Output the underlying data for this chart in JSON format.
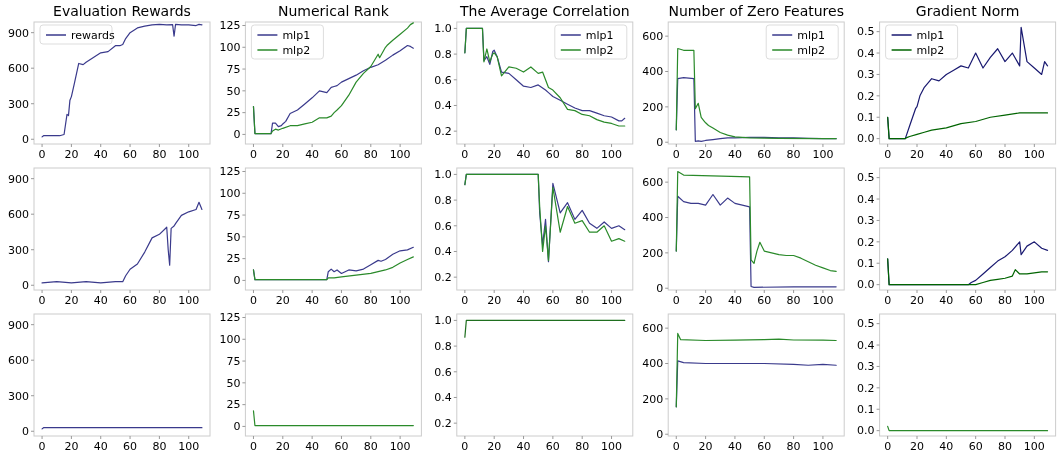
{
  "chart_data": [
    {
      "type": "line",
      "title": "Evaluation Rewards",
      "xlim": [
        -5.5,
        114.5
      ],
      "xticks": [
        0,
        20,
        40,
        60,
        80,
        100
      ],
      "ylim": [
        -40,
        990
      ],
      "yticks": [
        0,
        300,
        600,
        900
      ],
      "legend": "top left",
      "series": [
        {
          "name": "rewards",
          "color": "#3a3a8c",
          "x": [
            0,
            1,
            5,
            10,
            12,
            15,
            17,
            18,
            19,
            20,
            22,
            25,
            28,
            30,
            35,
            40,
            45,
            50,
            53,
            55,
            57,
            60,
            65,
            70,
            75,
            80,
            85,
            89,
            90,
            91,
            95,
            100,
            105,
            107,
            109
          ],
          "values": [
            20,
            30,
            30,
            30,
            30,
            40,
            210,
            200,
            330,
            360,
            470,
            640,
            630,
            650,
            690,
            730,
            740,
            790,
            790,
            800,
            850,
            900,
            940,
            955,
            965,
            970,
            965,
            968,
            870,
            970,
            965,
            965,
            960,
            970,
            965
          ]
        }
      ]
    },
    {
      "type": "line",
      "title": "Numerical Rank",
      "xlim": [
        -5.5,
        114.5
      ],
      "xticks": [
        0,
        20,
        40,
        60,
        80,
        100
      ],
      "ylim": [
        -11,
        129
      ],
      "yticks": [
        0,
        25,
        50,
        75,
        100,
        125
      ],
      "legend": "top left",
      "series": [
        {
          "name": "mlp1",
          "color": "#3a3a8c",
          "x": [
            0,
            1,
            12,
            13,
            15,
            17,
            19,
            20,
            22,
            25,
            30,
            35,
            40,
            45,
            50,
            53,
            55,
            57,
            60,
            65,
            70,
            75,
            80,
            85,
            90,
            95,
            100,
            105,
            107,
            109
          ],
          "values": [
            32,
            1,
            1,
            13,
            13,
            9,
            10,
            12,
            15,
            24,
            28,
            35,
            42,
            50,
            48,
            54,
            55,
            56,
            60,
            64,
            68,
            73,
            77,
            80,
            85,
            91,
            96,
            102,
            101,
            99
          ]
        },
        {
          "name": "mlp2",
          "color": "#2a8a2a",
          "x": [
            0,
            1,
            12,
            13,
            15,
            17,
            20,
            25,
            30,
            35,
            40,
            45,
            50,
            53,
            55,
            57,
            60,
            65,
            70,
            75,
            80,
            85,
            86,
            90,
            91,
            95,
            100,
            105,
            107,
            109
          ],
          "values": [
            32,
            1,
            1,
            4,
            6,
            5,
            7,
            10,
            10,
            12,
            14,
            19,
            19,
            21,
            25,
            28,
            33,
            45,
            60,
            70,
            78,
            92,
            88,
            100,
            102,
            108,
            115,
            122,
            126,
            128
          ]
        }
      ]
    },
    {
      "type": "line",
      "title": "The Average Correlation",
      "xlim": [
        -5.5,
        114.5
      ],
      "xticks": [
        0,
        20,
        40,
        60,
        80,
        100
      ],
      "ylim": [
        0.1,
        1.05
      ],
      "yticks": [
        {
          "value": 0.2,
          "label": "0.2"
        },
        {
          "value": 0.4,
          "label": "0.4"
        },
        {
          "value": 0.6,
          "label": "0.6"
        },
        {
          "value": 0.8,
          "label": "0.8"
        },
        {
          "value": 1,
          "label": "1.0"
        }
      ],
      "legend": "top right",
      "series": [
        {
          "name": "mlp1",
          "color": "#3a3a8c",
          "x": [
            0,
            1,
            12,
            13,
            15,
            17,
            19,
            20,
            22,
            25,
            30,
            35,
            40,
            45,
            50,
            55,
            57,
            60,
            65,
            70,
            75,
            80,
            85,
            90,
            95,
            100,
            105,
            107,
            109
          ],
          "values": [
            0.81,
            1,
            1,
            0.75,
            0.78,
            0.72,
            0.82,
            0.83,
            0.78,
            0.66,
            0.65,
            0.6,
            0.55,
            0.54,
            0.56,
            0.52,
            0.5,
            0.47,
            0.44,
            0.41,
            0.38,
            0.36,
            0.36,
            0.34,
            0.32,
            0.31,
            0.28,
            0.28,
            0.3
          ]
        },
        {
          "name": "mlp2",
          "color": "#2a8a2a",
          "x": [
            0,
            1,
            12,
            13,
            15,
            17,
            19,
            20,
            22,
            25,
            30,
            35,
            40,
            45,
            50,
            53,
            55,
            57,
            60,
            65,
            70,
            75,
            80,
            85,
            90,
            95,
            100,
            105,
            109
          ],
          "values": [
            0.81,
            1,
            1,
            0.74,
            0.84,
            0.74,
            0.8,
            0.81,
            0.78,
            0.63,
            0.7,
            0.69,
            0.66,
            0.7,
            0.65,
            0.66,
            0.6,
            0.54,
            0.52,
            0.46,
            0.37,
            0.36,
            0.33,
            0.32,
            0.29,
            0.27,
            0.26,
            0.24,
            0.24
          ]
        }
      ]
    },
    {
      "type": "line",
      "title": "Number of Zero Features",
      "xlim": [
        -5.5,
        114.5
      ],
      "xticks": [
        0,
        20,
        40,
        60,
        80,
        100
      ],
      "ylim": [
        -10,
        680
      ],
      "yticks": [
        0,
        200,
        400,
        600
      ],
      "legend": "top right",
      "series": [
        {
          "name": "mlp1",
          "color": "#3a3a8c",
          "x": [
            0,
            1,
            5,
            12,
            13,
            15,
            17,
            20,
            25,
            30,
            35,
            40,
            50,
            60,
            70,
            80,
            90,
            100,
            109
          ],
          "values": [
            70,
            360,
            365,
            360,
            5,
            8,
            5,
            10,
            15,
            20,
            25,
            25,
            28,
            28,
            25,
            25,
            22,
            20,
            20
          ]
        },
        {
          "name": "mlp2",
          "color": "#2a8a2a",
          "x": [
            0,
            1,
            5,
            12,
            13,
            15,
            17,
            19,
            20,
            22,
            25,
            30,
            35,
            40,
            45,
            50,
            60,
            70,
            100,
            109
          ],
          "values": [
            70,
            530,
            520,
            520,
            190,
            220,
            140,
            120,
            110,
            95,
            80,
            55,
            40,
            30,
            28,
            25,
            23,
            22,
            20,
            20
          ]
        }
      ]
    },
    {
      "type": "line",
      "title": "Gradient Norm",
      "xlim": [
        -5.5,
        114.5
      ],
      "xticks": [
        0,
        20,
        40,
        60,
        80,
        100
      ],
      "ylim": [
        -0.025,
        0.545
      ],
      "yticks": [
        {
          "value": 0,
          "label": "0.0"
        },
        {
          "value": 0.1,
          "label": "0.1"
        },
        {
          "value": 0.2,
          "label": "0.2"
        },
        {
          "value": 0.3,
          "label": "0.3"
        },
        {
          "value": 0.4,
          "label": "0.4"
        },
        {
          "value": 0.5,
          "label": "0.5"
        }
      ],
      "legend": "top left",
      "series": [
        {
          "name": "mlp1",
          "color": "#191970",
          "x": [
            0,
            1,
            12,
            13,
            15,
            17,
            19,
            20,
            22,
            25,
            30,
            35,
            40,
            45,
            50,
            55,
            60,
            65,
            70,
            75,
            80,
            85,
            90,
            91,
            95,
            100,
            105,
            107,
            109
          ],
          "values": [
            0.1,
            0,
            0,
            0.02,
            0.06,
            0.1,
            0.14,
            0.15,
            0.2,
            0.24,
            0.28,
            0.27,
            0.3,
            0.32,
            0.34,
            0.33,
            0.4,
            0.33,
            0.38,
            0.42,
            0.36,
            0.4,
            0.34,
            0.52,
            0.36,
            0.33,
            0.3,
            0.36,
            0.34
          ]
        },
        {
          "name": "mlp2",
          "color": "#006400",
          "x": [
            0,
            1,
            12,
            13,
            15,
            20,
            25,
            30,
            40,
            50,
            60,
            70,
            80,
            90,
            100,
            109
          ],
          "values": [
            0.1,
            0,
            0,
            0.005,
            0.01,
            0.02,
            0.03,
            0.04,
            0.05,
            0.07,
            0.08,
            0.1,
            0.11,
            0.12,
            0.12,
            0.12
          ]
        }
      ]
    },
    {
      "type": "line",
      "xlim": [
        -5.5,
        114.5
      ],
      "xticks": [
        0,
        20,
        40,
        60,
        80,
        100
      ],
      "ylim": [
        -40,
        990
      ],
      "yticks": [
        0,
        300,
        600,
        900
      ],
      "series": [
        {
          "color": "#3a3a8c",
          "x": [
            0,
            10,
            20,
            30,
            40,
            50,
            55,
            57,
            60,
            65,
            70,
            75,
            80,
            85,
            86,
            87,
            88,
            90,
            91,
            95,
            100,
            105,
            107,
            109
          ],
          "values": [
            20,
            30,
            20,
            30,
            20,
            30,
            30,
            80,
            135,
            180,
            280,
            400,
            430,
            490,
            300,
            170,
            480,
            500,
            520,
            590,
            620,
            640,
            700,
            640
          ]
        }
      ]
    },
    {
      "type": "line",
      "xlim": [
        -5.5,
        114.5
      ],
      "xticks": [
        0,
        20,
        40,
        60,
        80,
        100
      ],
      "ylim": [
        -11,
        129
      ],
      "yticks": [
        0,
        25,
        50,
        75,
        100,
        125
      ],
      "series": [
        {
          "color": "#3a3a8c",
          "x": [
            0,
            1,
            50,
            51,
            53,
            55,
            57,
            60,
            65,
            70,
            75,
            80,
            85,
            87,
            90,
            95,
            100,
            105,
            109
          ],
          "values": [
            12,
            1,
            1,
            10,
            13,
            10,
            12,
            8,
            12,
            11,
            13,
            18,
            23,
            22,
            24,
            30,
            34,
            35,
            38
          ]
        },
        {
          "color": "#2a8a2a",
          "x": [
            0,
            1,
            50,
            51,
            55,
            60,
            70,
            80,
            90,
            95,
            100,
            105,
            109
          ],
          "values": [
            12,
            1,
            1,
            3,
            3,
            4,
            6,
            8,
            12,
            15,
            20,
            24,
            27
          ]
        }
      ]
    },
    {
      "type": "line",
      "xlim": [
        -5.5,
        114.5
      ],
      "xticks": [
        0,
        20,
        40,
        60,
        80,
        100
      ],
      "ylim": [
        0.1,
        1.05
      ],
      "yticks": [
        {
          "value": 0.2,
          "label": "0.2"
        },
        {
          "value": 0.4,
          "label": "0.4"
        },
        {
          "value": 0.6,
          "label": "0.6"
        },
        {
          "value": 0.8,
          "label": "0.8"
        },
        {
          "value": 1,
          "label": "1.0"
        }
      ],
      "series": [
        {
          "color": "#3a3a8c",
          "x": [
            0,
            1,
            50,
            51,
            53,
            55,
            57,
            60,
            65,
            70,
            75,
            80,
            85,
            90,
            95,
            100,
            105,
            109
          ],
          "values": [
            0.92,
            1,
            1,
            0.7,
            0.45,
            0.65,
            0.32,
            0.93,
            0.7,
            0.78,
            0.65,
            0.72,
            0.62,
            0.58,
            0.63,
            0.58,
            0.6,
            0.57
          ]
        },
        {
          "color": "#2a8a2a",
          "x": [
            0,
            1,
            50,
            51,
            53,
            55,
            57,
            60,
            65,
            70,
            75,
            80,
            85,
            90,
            95,
            100,
            105,
            109
          ],
          "values": [
            0.92,
            1,
            1,
            0.75,
            0.4,
            0.6,
            0.33,
            0.9,
            0.55,
            0.75,
            0.62,
            0.64,
            0.55,
            0.55,
            0.6,
            0.48,
            0.5,
            0.48
          ]
        }
      ]
    },
    {
      "type": "line",
      "xlim": [
        -5.5,
        114.5
      ],
      "xticks": [
        0,
        20,
        40,
        60,
        80,
        100
      ],
      "ylim": [
        -10,
        680
      ],
      "yticks": [
        0,
        200,
        400,
        600
      ],
      "series": [
        {
          "color": "#3a3a8c",
          "x": [
            0,
            1,
            5,
            10,
            15,
            20,
            25,
            30,
            35,
            40,
            45,
            50,
            51,
            53,
            80,
            109
          ],
          "values": [
            210,
            520,
            490,
            480,
            480,
            470,
            530,
            470,
            510,
            480,
            470,
            460,
            10,
            5,
            8,
            8
          ]
        },
        {
          "color": "#2a8a2a",
          "x": [
            0,
            1,
            5,
            50,
            51,
            53,
            55,
            57,
            60,
            65,
            70,
            75,
            80,
            85,
            90,
            95,
            100,
            105,
            109
          ],
          "values": [
            210,
            660,
            640,
            630,
            160,
            140,
            210,
            260,
            210,
            200,
            190,
            185,
            185,
            170,
            150,
            130,
            115,
            100,
            95
          ]
        }
      ]
    },
    {
      "type": "line",
      "xlim": [
        -5.5,
        114.5
      ],
      "xticks": [
        0,
        20,
        40,
        60,
        80,
        100
      ],
      "ylim": [
        -0.025,
        0.545
      ],
      "yticks": [
        {
          "value": 0,
          "label": "0.0"
        },
        {
          "value": 0.1,
          "label": "0.1"
        },
        {
          "value": 0.2,
          "label": "0.2"
        },
        {
          "value": 0.3,
          "label": "0.3"
        },
        {
          "value": 0.4,
          "label": "0.4"
        },
        {
          "value": 0.5,
          "label": "0.5"
        }
      ],
      "series": [
        {
          "color": "#191970",
          "x": [
            0,
            1,
            55,
            57,
            60,
            65,
            70,
            75,
            80,
            85,
            90,
            91,
            95,
            100,
            105,
            109
          ],
          "values": [
            0.12,
            0,
            0,
            0.01,
            0.02,
            0.05,
            0.08,
            0.11,
            0.13,
            0.16,
            0.2,
            0.14,
            0.18,
            0.2,
            0.17,
            0.16
          ]
        },
        {
          "color": "#006400",
          "x": [
            0,
            1,
            60,
            65,
            70,
            75,
            80,
            85,
            87,
            90,
            95,
            100,
            105,
            109
          ],
          "values": [
            0.12,
            0,
            0,
            0.01,
            0.02,
            0.025,
            0.03,
            0.04,
            0.07,
            0.05,
            0.05,
            0.055,
            0.06,
            0.06
          ]
        }
      ]
    },
    {
      "type": "line",
      "xlim": [
        -5.5,
        114.5
      ],
      "xticks": [
        0,
        20,
        40,
        60,
        80,
        100
      ],
      "ylim": [
        -40,
        990
      ],
      "yticks": [
        0,
        300,
        600,
        900
      ],
      "series": [
        {
          "color": "#3a3a8c",
          "x": [
            0,
            1,
            109
          ],
          "values": [
            20,
            30,
            30
          ]
        }
      ]
    },
    {
      "type": "line",
      "xlim": [
        -5.5,
        114.5
      ],
      "xticks": [
        0,
        20,
        40,
        60,
        80,
        100
      ],
      "ylim": [
        -11,
        129
      ],
      "yticks": [
        0,
        25,
        50,
        75,
        100,
        125
      ],
      "series": [
        {
          "color": "#2a8a2a",
          "x": [
            0,
            1,
            109
          ],
          "values": [
            18,
            1,
            1
          ]
        }
      ]
    },
    {
      "type": "line",
      "xlim": [
        -5.5,
        114.5
      ],
      "xticks": [
        0,
        20,
        40,
        60,
        80,
        100
      ],
      "ylim": [
        0.1,
        1.05
      ],
      "yticks": [
        {
          "value": 0.2,
          "label": "0.2"
        },
        {
          "value": 0.4,
          "label": "0.4"
        },
        {
          "value": 0.6,
          "label": "0.6"
        },
        {
          "value": 0.8,
          "label": "0.8"
        },
        {
          "value": 1,
          "label": "1.0"
        }
      ],
      "series": [
        {
          "color": "#1f6f1f",
          "x": [
            0,
            1,
            109
          ],
          "values": [
            0.87,
            1,
            1
          ]
        }
      ]
    },
    {
      "type": "line",
      "xlim": [
        -5.5,
        114.5
      ],
      "xticks": [
        0,
        20,
        40,
        60,
        80,
        100
      ],
      "ylim": [
        -10,
        680
      ],
      "yticks": [
        0,
        200,
        400,
        600
      ],
      "series": [
        {
          "color": "#3a3a8c",
          "x": [
            0,
            1,
            5,
            20,
            40,
            60,
            80,
            90,
            100,
            109
          ],
          "values": [
            155,
            415,
            405,
            400,
            400,
            400,
            395,
            390,
            395,
            390
          ]
        },
        {
          "color": "#2a8a2a",
          "x": [
            0,
            1,
            3,
            20,
            40,
            60,
            70,
            80,
            100,
            109
          ],
          "values": [
            155,
            570,
            535,
            530,
            532,
            535,
            538,
            533,
            532,
            530
          ]
        }
      ]
    },
    {
      "type": "line",
      "xlim": [
        -5.5,
        114.5
      ],
      "xticks": [
        0,
        20,
        40,
        60,
        80,
        100
      ],
      "ylim": [
        -0.025,
        0.545
      ],
      "yticks": [
        {
          "value": 0,
          "label": "0.0"
        },
        {
          "value": 0.1,
          "label": "0.1"
        },
        {
          "value": 0.2,
          "label": "0.2"
        },
        {
          "value": 0.3,
          "label": "0.3"
        },
        {
          "value": 0.4,
          "label": "0.4"
        },
        {
          "value": 0.5,
          "label": "0.5"
        }
      ],
      "series": [
        {
          "color": "#2a8a2a",
          "x": [
            0,
            1,
            109
          ],
          "values": [
            0.02,
            0,
            0
          ]
        }
      ]
    }
  ]
}
